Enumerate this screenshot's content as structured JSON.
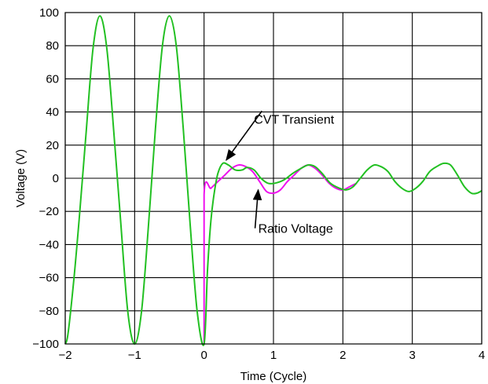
{
  "chart_data": {
    "type": "line",
    "xlabel": "Time (Cycle)",
    "ylabel": "Voltage (V)",
    "xlim": [
      -2,
      4
    ],
    "ylim": [
      -100,
      100
    ],
    "x_ticks": [
      -2,
      -1,
      0,
      1,
      2,
      3,
      4
    ],
    "x_tick_labels": [
      "−2",
      "−1",
      "0",
      "1",
      "2",
      "3",
      "4"
    ],
    "y_ticks": [
      -100,
      -80,
      -60,
      -40,
      -20,
      0,
      20,
      40,
      60,
      80,
      100
    ],
    "y_tick_labels": [
      "−100",
      "−80",
      "−60",
      "−40",
      "−20",
      "0",
      "20",
      "40",
      "60",
      "80",
      "100"
    ],
    "grid": true,
    "colors": {
      "cvt": "#22c022",
      "ratio": "#ee11ee",
      "grid": "#000000"
    },
    "series": [
      {
        "key": "ratio",
        "points": [
          [
            0.0,
            -100
          ],
          [
            0.0,
            -10
          ],
          [
            0.1,
            -6
          ],
          [
            0.2,
            -2
          ],
          [
            0.3,
            2
          ],
          [
            0.4,
            6
          ],
          [
            0.5,
            8
          ],
          [
            0.6,
            7
          ],
          [
            0.7,
            4
          ],
          [
            0.8,
            -2
          ],
          [
            0.9,
            -8
          ],
          [
            1.0,
            -9
          ],
          [
            1.1,
            -7
          ],
          [
            1.2,
            -2
          ],
          [
            1.3,
            2
          ],
          [
            1.4,
            6
          ],
          [
            1.5,
            8
          ],
          [
            1.6,
            6
          ],
          [
            1.7,
            2
          ],
          [
            1.8,
            -3
          ],
          [
            1.9,
            -6
          ],
          [
            2.0,
            -7
          ],
          [
            2.1,
            -5
          ],
          [
            2.2,
            -3
          ]
        ]
      },
      {
        "key": "cvt",
        "points": [
          [
            -2.0,
            -100
          ],
          [
            -1.96,
            -94
          ],
          [
            -1.88,
            -63
          ],
          [
            -1.8,
            -25
          ],
          [
            -1.7,
            27
          ],
          [
            -1.6,
            78
          ],
          [
            -1.5,
            98
          ],
          [
            -1.4,
            78
          ],
          [
            -1.3,
            28
          ],
          [
            -1.2,
            -27
          ],
          [
            -1.1,
            -80
          ],
          [
            -1.0,
            -100
          ],
          [
            -0.9,
            -80
          ],
          [
            -0.8,
            -28
          ],
          [
            -0.7,
            30
          ],
          [
            -0.6,
            80
          ],
          [
            -0.5,
            98
          ],
          [
            -0.4,
            80
          ],
          [
            -0.3,
            30
          ],
          [
            -0.2,
            -28
          ],
          [
            -0.1,
            -80
          ],
          [
            0.0,
            -100
          ],
          [
            0.05,
            -55
          ],
          [
            0.1,
            -25
          ],
          [
            0.15,
            -8
          ],
          [
            0.2,
            3
          ],
          [
            0.27,
            9
          ],
          [
            0.35,
            8
          ],
          [
            0.45,
            5
          ],
          [
            0.55,
            5
          ],
          [
            0.62,
            6.5
          ],
          [
            0.72,
            5
          ],
          [
            0.82,
            0
          ],
          [
            0.92,
            -3
          ],
          [
            1.02,
            -3
          ],
          [
            1.15,
            -1
          ],
          [
            1.28,
            3
          ],
          [
            1.4,
            6
          ],
          [
            1.5,
            8
          ],
          [
            1.6,
            7
          ],
          [
            1.7,
            3
          ],
          [
            1.82,
            -3
          ],
          [
            1.95,
            -6
          ],
          [
            2.05,
            -7
          ],
          [
            2.15,
            -5
          ],
          [
            2.25,
            0
          ],
          [
            2.35,
            5
          ],
          [
            2.45,
            8
          ],
          [
            2.55,
            7
          ],
          [
            2.65,
            4
          ],
          [
            2.75,
            -2
          ],
          [
            2.85,
            -6
          ],
          [
            2.95,
            -8
          ],
          [
            3.05,
            -6
          ],
          [
            3.15,
            -2
          ],
          [
            3.25,
            4
          ],
          [
            3.35,
            7
          ],
          [
            3.45,
            9
          ],
          [
            3.55,
            8
          ],
          [
            3.65,
            2
          ],
          [
            3.75,
            -5
          ],
          [
            3.85,
            -9
          ],
          [
            3.93,
            -9
          ],
          [
            4.0,
            -7.5
          ]
        ]
      }
    ],
    "annotations": [
      {
        "key": "cvt",
        "text": "CVT Transient",
        "label_x": 0.72,
        "label_y": 33,
        "arrow_to": [
          0.32,
          11
        ]
      },
      {
        "key": "ratio",
        "text": "Ratio Voltage",
        "label_x": 0.78,
        "label_y": -33,
        "arrow_to": [
          0.78,
          -7
        ]
      }
    ]
  }
}
